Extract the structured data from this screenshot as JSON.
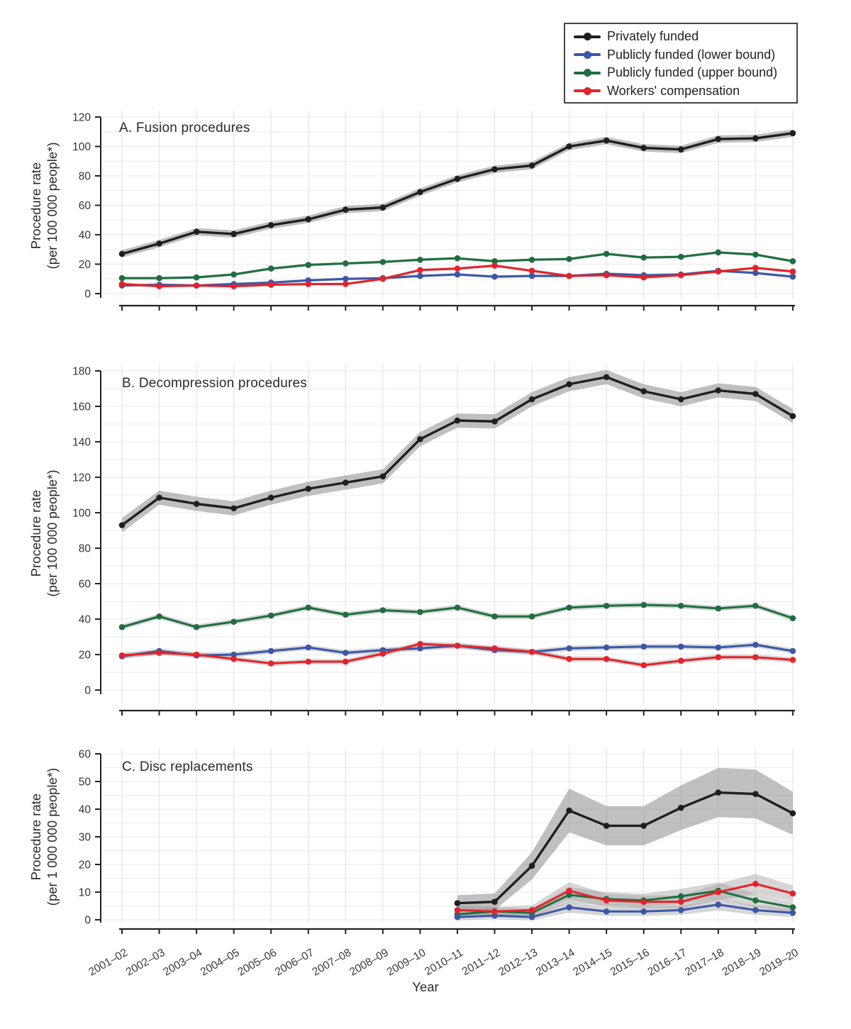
{
  "legend": {
    "items": [
      {
        "label": "Privately funded",
        "color": "#1f1f1f"
      },
      {
        "label": "Publicly funded (lower bound)",
        "color": "#3a57a8"
      },
      {
        "label": "Publicly funded (upper bound)",
        "color": "#1d6f3f"
      },
      {
        "label": "Workers' compensation",
        "color": "#e62129"
      }
    ]
  },
  "chart_data": {
    "type": "line",
    "xlabel": "Year",
    "categories": [
      "2001–02",
      "2002–03",
      "2003–04",
      "2004–05",
      "2005–06",
      "2006–07",
      "2007–08",
      "2008–09",
      "2009–10",
      "2010–11",
      "2011–12",
      "2012–13",
      "2013–14",
      "2014–15",
      "2015–16",
      "2016–17",
      "2017–18",
      "2018–19",
      "2019–20"
    ],
    "panels": [
      {
        "title": "A. Fusion procedures",
        "ylabel": [
          "Procedure rate",
          "(per 100 000 people*)"
        ],
        "ylim": [
          0,
          120
        ],
        "yticks": [
          0,
          20,
          40,
          60,
          80,
          100,
          120
        ],
        "series": [
          {
            "name": "Privately funded",
            "color": "#1f1f1f",
            "ci": 2.5,
            "values": [
              27,
              34,
              42,
              40.5,
              46.5,
              50.5,
              57,
              58.5,
              69,
              78,
              84.5,
              87,
              100,
              104,
              99,
              98,
              105,
              105.5,
              109
            ]
          },
          {
            "name": "Publicly funded (lower bound)",
            "color": "#3a57a8",
            "ci": 1,
            "values": [
              5.5,
              6,
              5.5,
              6.5,
              7.5,
              9,
              10,
              10.5,
              12,
              13,
              11.5,
              12,
              12,
              13.5,
              12.5,
              13,
              15.5,
              14,
              11.5
            ]
          },
          {
            "name": "Publicly funded (upper bound)",
            "color": "#1d6f3f",
            "ci": 1,
            "values": [
              10.5,
              10.5,
              11,
              13,
              17,
              19.5,
              20.5,
              21.5,
              23,
              24,
              22,
              23,
              23.5,
              27,
              24.5,
              25,
              28,
              26.5,
              22
            ]
          },
          {
            "name": "Workers' compensation",
            "color": "#e62129",
            "ci": 1,
            "values": [
              6.5,
              5,
              5.5,
              5,
              6,
              6.5,
              6.5,
              10,
              16,
              17,
              19,
              15.5,
              12,
              12.5,
              11,
              12.5,
              15,
              17.5,
              15
            ]
          }
        ]
      },
      {
        "title": "B. Decompression procedures",
        "ylabel": [
          "Procedure rate",
          "(per 100 000 people*)"
        ],
        "ylim": [
          0,
          180
        ],
        "yticks": [
          0,
          20,
          40,
          60,
          80,
          100,
          120,
          140,
          160,
          180
        ],
        "series": [
          {
            "name": "Privately funded",
            "color": "#1f1f1f",
            "ci": 4,
            "values": [
              93,
              108.5,
              105,
              102.5,
              108.5,
              113.5,
              117,
              120.5,
              141.5,
              152,
              151.5,
              164,
              172.5,
              176.5,
              168.5,
              164,
              169,
              167,
              154.5
            ]
          },
          {
            "name": "Publicly funded (lower bound)",
            "color": "#3a57a8",
            "ci": 1.5,
            "values": [
              19,
              22,
              19.5,
              20,
              22,
              24,
              21,
              22.5,
              23.5,
              25,
              22.5,
              21.5,
              23.5,
              24,
              24.5,
              24.5,
              24,
              25.5,
              22
            ]
          },
          {
            "name": "Publicly funded (upper bound)",
            "color": "#1d6f3f",
            "ci": 1.5,
            "values": [
              35.5,
              41.5,
              35.5,
              38.5,
              42,
              46.5,
              42.5,
              45,
              44,
              46.5,
              41.5,
              41.5,
              46.5,
              47.5,
              48,
              47.5,
              46,
              47.5,
              40.5
            ]
          },
          {
            "name": "Workers' compensation",
            "color": "#e62129",
            "ci": 1.5,
            "values": [
              19.5,
              21,
              20,
              17.5,
              15,
              16,
              16,
              20.5,
              26,
              25,
              23.5,
              21.5,
              17.5,
              17.5,
              14,
              16.5,
              18.5,
              18.5,
              17
            ]
          }
        ]
      },
      {
        "title": "C. Disc replacements",
        "ylabel": [
          "Procedure rate",
          "(per 1 000 000 people*)"
        ],
        "ylim": [
          0,
          60
        ],
        "yticks": [
          0,
          10,
          20,
          30,
          40,
          50,
          60
        ],
        "series": [
          {
            "name": "Privately funded",
            "color": "#1f1f1f",
            "ci": [
              2,
              0.15
            ],
            "values": [
              null,
              null,
              null,
              null,
              null,
              null,
              null,
              null,
              null,
              6,
              6.5,
              19.5,
              39.5,
              34,
              34,
              40.5,
              46,
              45.5,
              38.5
            ]
          },
          {
            "name": "Publicly funded (lower bound)",
            "color": "#3a57a8",
            "ci": [
              1,
              0.2
            ],
            "values": [
              null,
              null,
              null,
              null,
              null,
              null,
              null,
              null,
              null,
              1,
              1.5,
              1,
              4.5,
              3,
              3,
              3.5,
              5.5,
              3.5,
              2.5
            ]
          },
          {
            "name": "Publicly funded (upper bound)",
            "color": "#1d6f3f",
            "ci": [
              1,
              0.2
            ],
            "values": [
              null,
              null,
              null,
              null,
              null,
              null,
              null,
              null,
              null,
              2,
              3,
              2.5,
              9,
              7.5,
              7,
              8.5,
              10.5,
              7,
              4.5
            ]
          },
          {
            "name": "Workers' compensation",
            "color": "#e62129",
            "ci": [
              1,
              0.2
            ],
            "values": [
              null,
              null,
              null,
              null,
              null,
              null,
              null,
              null,
              null,
              3.5,
              3,
              3.5,
              10.5,
              7,
              6.5,
              6.5,
              10,
              13,
              9.5
            ]
          }
        ]
      }
    ]
  }
}
